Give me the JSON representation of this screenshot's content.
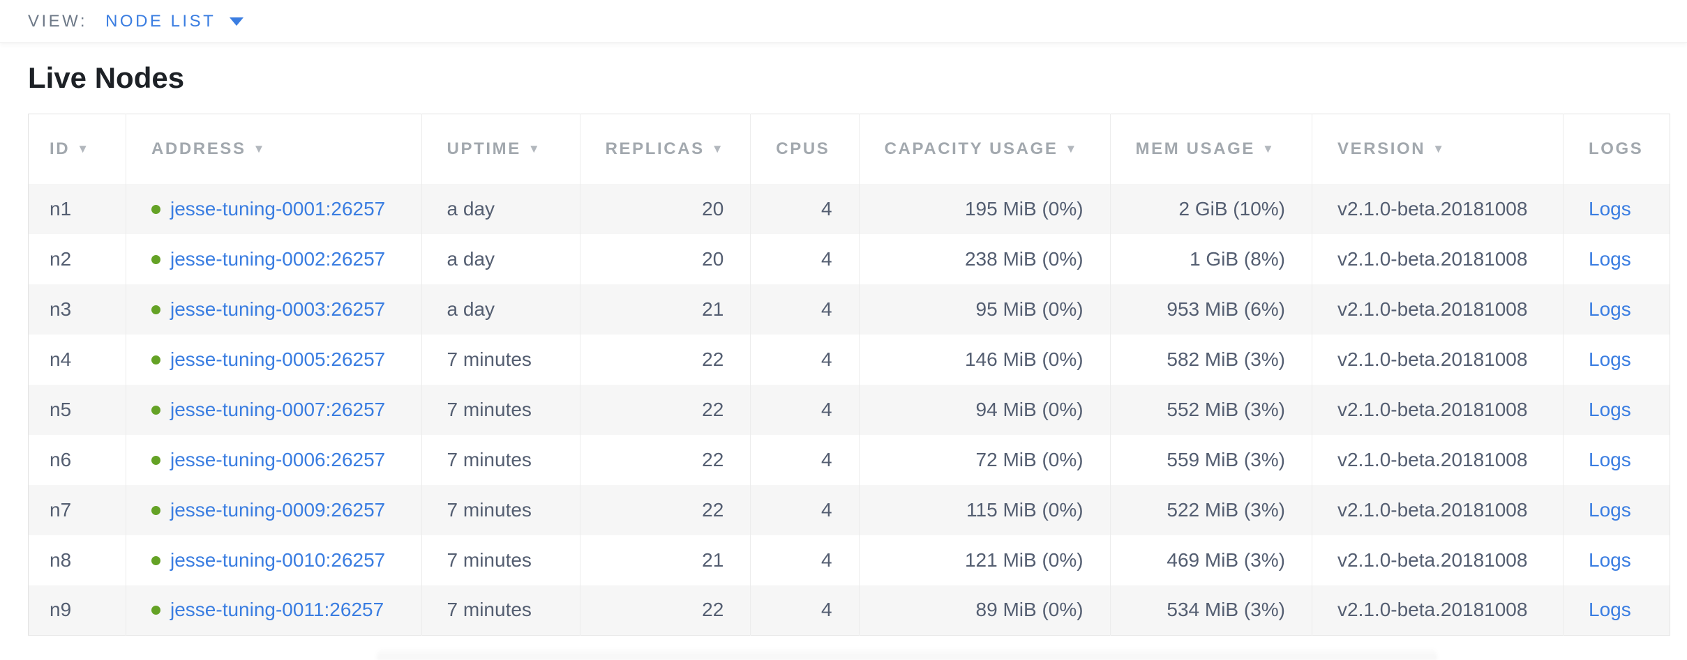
{
  "view_bar": {
    "label": "VIEW:",
    "selected": "NODE LIST"
  },
  "title": "Live Nodes",
  "table": {
    "sort_icon": "▼",
    "logs_link_label": "Logs",
    "columns": [
      {
        "key": "id",
        "label": "ID",
        "sortable": true
      },
      {
        "key": "address",
        "label": "ADDRESS",
        "sortable": true
      },
      {
        "key": "uptime",
        "label": "UPTIME",
        "sortable": true
      },
      {
        "key": "replicas",
        "label": "REPLICAS",
        "sortable": true
      },
      {
        "key": "cpus",
        "label": "CPUS",
        "sortable": false
      },
      {
        "key": "capacity",
        "label": "CAPACITY USAGE",
        "sortable": true
      },
      {
        "key": "mem",
        "label": "MEM USAGE",
        "sortable": true
      },
      {
        "key": "version",
        "label": "VERSION",
        "sortable": true
      },
      {
        "key": "logs",
        "label": "LOGS",
        "sortable": false
      }
    ],
    "rows": [
      {
        "id": "n1",
        "status": "live",
        "address": "jesse-tuning-0001:26257",
        "uptime": "a day",
        "replicas": "20",
        "cpus": "4",
        "capacity": "195 MiB (0%)",
        "mem": "2 GiB (10%)",
        "version": "v2.1.0-beta.20181008"
      },
      {
        "id": "n2",
        "status": "live",
        "address": "jesse-tuning-0002:26257",
        "uptime": "a day",
        "replicas": "20",
        "cpus": "4",
        "capacity": "238 MiB (0%)",
        "mem": "1 GiB (8%)",
        "version": "v2.1.0-beta.20181008"
      },
      {
        "id": "n3",
        "status": "live",
        "address": "jesse-tuning-0003:26257",
        "uptime": "a day",
        "replicas": "21",
        "cpus": "4",
        "capacity": "95 MiB (0%)",
        "mem": "953 MiB (6%)",
        "version": "v2.1.0-beta.20181008"
      },
      {
        "id": "n4",
        "status": "live",
        "address": "jesse-tuning-0005:26257",
        "uptime": "7 minutes",
        "replicas": "22",
        "cpus": "4",
        "capacity": "146 MiB (0%)",
        "mem": "582 MiB (3%)",
        "version": "v2.1.0-beta.20181008"
      },
      {
        "id": "n5",
        "status": "live",
        "address": "jesse-tuning-0007:26257",
        "uptime": "7 minutes",
        "replicas": "22",
        "cpus": "4",
        "capacity": "94 MiB (0%)",
        "mem": "552 MiB (3%)",
        "version": "v2.1.0-beta.20181008"
      },
      {
        "id": "n6",
        "status": "live",
        "address": "jesse-tuning-0006:26257",
        "uptime": "7 minutes",
        "replicas": "22",
        "cpus": "4",
        "capacity": "72 MiB (0%)",
        "mem": "559 MiB (3%)",
        "version": "v2.1.0-beta.20181008"
      },
      {
        "id": "n7",
        "status": "live",
        "address": "jesse-tuning-0009:26257",
        "uptime": "7 minutes",
        "replicas": "22",
        "cpus": "4",
        "capacity": "115 MiB (0%)",
        "mem": "522 MiB (3%)",
        "version": "v2.1.0-beta.20181008"
      },
      {
        "id": "n8",
        "status": "live",
        "address": "jesse-tuning-0010:26257",
        "uptime": "7 minutes",
        "replicas": "21",
        "cpus": "4",
        "capacity": "121 MiB (0%)",
        "mem": "469 MiB (3%)",
        "version": "v2.1.0-beta.20181008"
      },
      {
        "id": "n9",
        "status": "live",
        "address": "jesse-tuning-0011:26257",
        "uptime": "7 minutes",
        "replicas": "22",
        "cpus": "4",
        "capacity": "89 MiB (0%)",
        "mem": "534 MiB (3%)",
        "version": "v2.1.0-beta.20181008"
      }
    ]
  },
  "colors": {
    "link_blue": "#3A7DE1",
    "status_live_green": "#64A225",
    "header_text_gray": "#A2A8AE",
    "cell_text": "#545E71",
    "title_text": "#1D2126",
    "view_label_gray": "#6E7988",
    "row_alt_background": "#F6F6F6",
    "table_border": "#E2E2E2",
    "column_divider": "#ECECEC"
  }
}
